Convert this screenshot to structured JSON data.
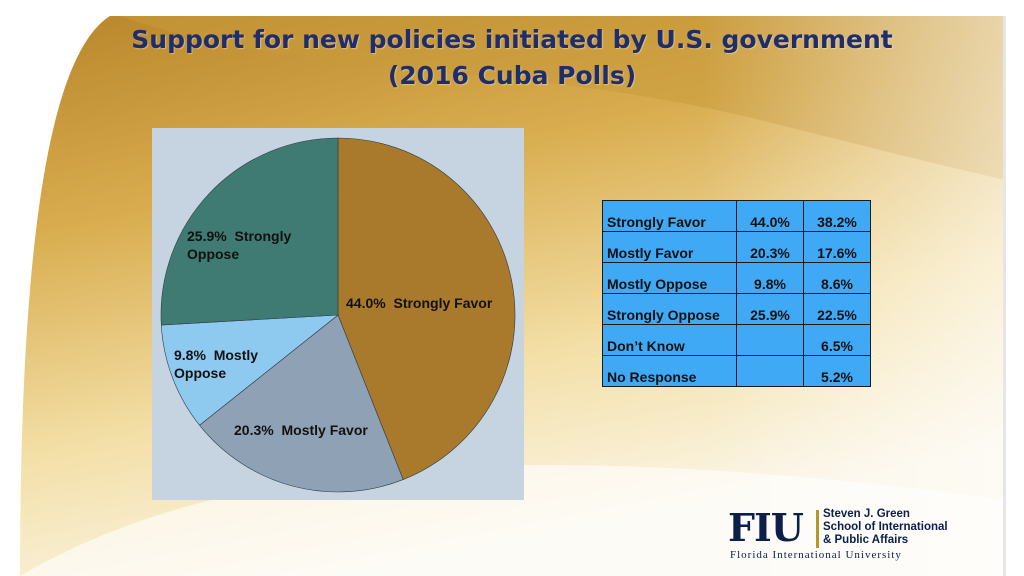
{
  "slide": {
    "title_line1": "Support for new policies initiated by U.S. government",
    "title_line2": "(2016 Cuba Polls)"
  },
  "colors": {
    "strongly_favor": "#a97a2b",
    "mostly_favor": "#8fa2b5",
    "mostly_oppose": "#8ec9f0",
    "strongly_oppose": "#3f7a73",
    "table_bg": "#3fa9f5",
    "title": "#1f2d6b"
  },
  "chart_data": {
    "type": "pie",
    "title": "",
    "slices": [
      {
        "name": "Strongly Favor",
        "value": 44.0,
        "label": "44.0%  Strongly Favor",
        "color": "#a97a2b"
      },
      {
        "name": "Mostly Favor",
        "value": 20.3,
        "label": "20.3%  Mostly Favor",
        "color": "#8fa2b5"
      },
      {
        "name": "Mostly Oppose",
        "value": 9.8,
        "label": "9.8%  Mostly\nOppose",
        "color": "#8ec9f0"
      },
      {
        "name": "Strongly Oppose",
        "value": 25.9,
        "label": "25.9%  Strongly\nOppose",
        "color": "#3f7a73"
      }
    ]
  },
  "table": {
    "rows": [
      {
        "label": "Strongly Favor",
        "v1": "44.0%",
        "v2": "38.2%"
      },
      {
        "label": "Mostly Favor",
        "v1": "20.3%",
        "v2": "17.6%"
      },
      {
        "label": "Mostly Oppose",
        "v1": "9.8%",
        "v2": "8.6%"
      },
      {
        "label": "Strongly Oppose",
        "v1": "25.9%",
        "v2": "22.5%"
      },
      {
        "label": "Don’t Know",
        "v1": "",
        "v2": "6.5%"
      },
      {
        "label": "No Response",
        "v1": "",
        "v2": "5.2%"
      }
    ]
  },
  "logo": {
    "mark": "FIU",
    "school": "Steven J. Green\nSchool of International\n& Public Affairs",
    "university": "Florida International University"
  }
}
